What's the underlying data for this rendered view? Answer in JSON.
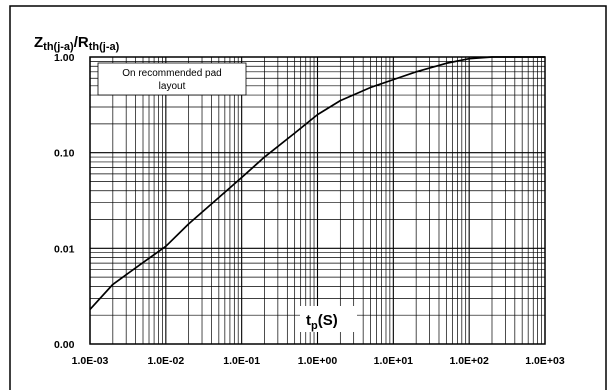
{
  "chart_data": {
    "type": "line",
    "x_scale": "log",
    "y_scale": "log",
    "xlim": [
      0.001,
      1000
    ],
    "ylim": [
      0.001,
      1.0
    ],
    "x_ticks": [
      0.001,
      0.01,
      0.1,
      1,
      10,
      100,
      1000
    ],
    "x_tick_labels": [
      "1.0E-03",
      "1.0E-02",
      "1.0E-01",
      "1.0E+00",
      "1.0E+01",
      "1.0E+02",
      "1.0E+03"
    ],
    "y_ticks": [
      0.001,
      0.01,
      0.1,
      1.0
    ],
    "y_tick_labels": [
      "0.00",
      "0.01",
      "0.10",
      "1.00"
    ],
    "ylabel": {
      "main": "Z",
      "sub": "th(j-a)",
      "sep": "/R",
      "sub2": "th(j-a)"
    },
    "xlabel": {
      "main": "t",
      "sub": "p",
      "rest": "(S)"
    },
    "annotation": {
      "line1": "On recommended pad",
      "line2": "layout"
    },
    "grid": true,
    "minor_grid": true,
    "line_color": "#000000",
    "series": [
      {
        "x": [
          0.001,
          0.002,
          0.005,
          0.01,
          0.02,
          0.05,
          0.1,
          0.2,
          0.5,
          1,
          2,
          5,
          10,
          20,
          50,
          100,
          200,
          500,
          1000
        ],
        "values": [
          0.0023,
          0.0042,
          0.0071,
          0.0105,
          0.018,
          0.034,
          0.055,
          0.09,
          0.16,
          0.25,
          0.35,
          0.48,
          0.58,
          0.7,
          0.86,
          0.96,
          1.0,
          1.0,
          1.0
        ]
      }
    ]
  }
}
